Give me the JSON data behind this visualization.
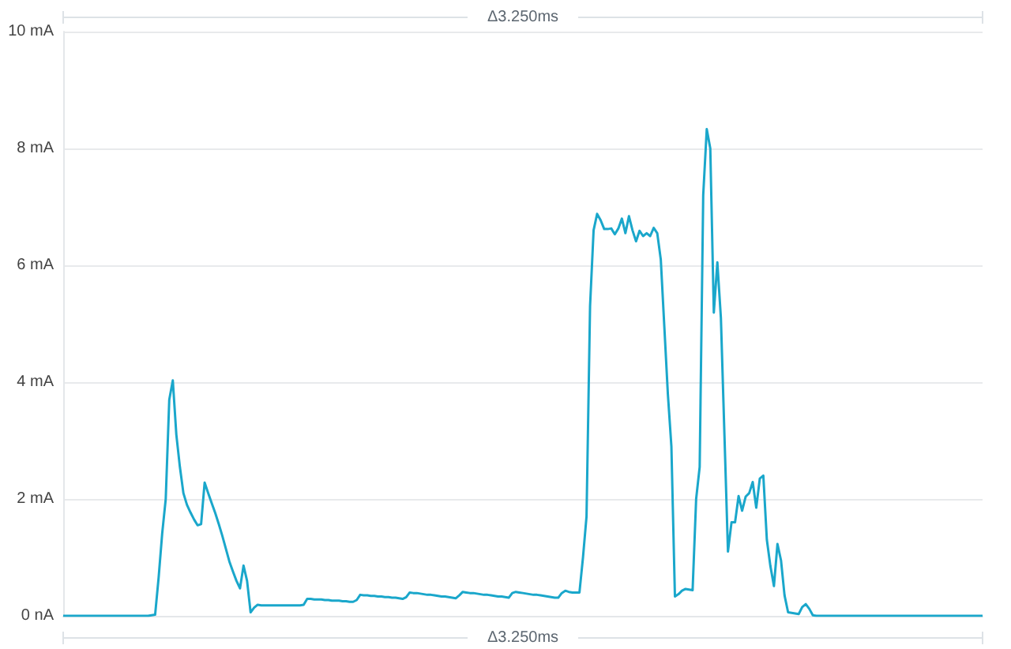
{
  "chart_data": {
    "type": "line",
    "categories": [
      null,
      null,
      null,
      null,
      null,
      null,
      null,
      null,
      null,
      null,
      null,
      null,
      null,
      null,
      null,
      null,
      null,
      null,
      null,
      null,
      null,
      null,
      null,
      null,
      null,
      null,
      null,
      null,
      null,
      null,
      null,
      null,
      null,
      null,
      null,
      null,
      null,
      null,
      null,
      null,
      null,
      null,
      null,
      null,
      null,
      null,
      null,
      null,
      null,
      null,
      null,
      null,
      null,
      null,
      null,
      null,
      null,
      null,
      null,
      null,
      null,
      null,
      null,
      null,
      null,
      null,
      null,
      null,
      null,
      null,
      null,
      null,
      null,
      null,
      null,
      null,
      null,
      null,
      null,
      null,
      null,
      null,
      null,
      null,
      null,
      null,
      null,
      null,
      null,
      null,
      null,
      null,
      null,
      null,
      null,
      null,
      null,
      null,
      null,
      null,
      null,
      null,
      null,
      null,
      null,
      null,
      null,
      null,
      null,
      null,
      null,
      null,
      null,
      null,
      null,
      null,
      null,
      null,
      null,
      null,
      null,
      null,
      null,
      null,
      null,
      null,
      null,
      null,
      null,
      null,
      null,
      null,
      null,
      null,
      null,
      null,
      null,
      null,
      null,
      null,
      null,
      null,
      null,
      null,
      null,
      null,
      null,
      null,
      null,
      null,
      null,
      null,
      null,
      null,
      null,
      null,
      null,
      null,
      null,
      null,
      null,
      null,
      null,
      null,
      null,
      null,
      null,
      null,
      null,
      null,
      null,
      null,
      null,
      null,
      null,
      null,
      null,
      null,
      null,
      null,
      null,
      null,
      null,
      null,
      null,
      null,
      null,
      null,
      null,
      null,
      null,
      null,
      null,
      null,
      null,
      null,
      null,
      null,
      null,
      null,
      null,
      null,
      null,
      null,
      null,
      null,
      null,
      null,
      null,
      null,
      null,
      null,
      null,
      null,
      null,
      null,
      null,
      null,
      null,
      null,
      null,
      null,
      null,
      null,
      null,
      null,
      null,
      null,
      null,
      null,
      null,
      null,
      null,
      null,
      null,
      null,
      null,
      null,
      null,
      null,
      null,
      null,
      null,
      null,
      null,
      null,
      null,
      null,
      null,
      null,
      null,
      null,
      null,
      null,
      null,
      null,
      null,
      null,
      null,
      null,
      null
    ],
    "series": [
      {
        "color": "#1aa7cb",
        "values": [
          0,
          0,
          0,
          0,
          0,
          0,
          0,
          0,
          0,
          0,
          0,
          0,
          0,
          0,
          0,
          0,
          0,
          0,
          0,
          0,
          0,
          0,
          0,
          0,
          0,
          0.01,
          0.02,
          0.66,
          1.41,
          2.0,
          3.7,
          4.03,
          3.1,
          2.55,
          2.1,
          1.9,
          1.77,
          1.65,
          1.55,
          1.57,
          2.28,
          2.1,
          1.93,
          1.76,
          1.57,
          1.37,
          1.15,
          0.93,
          0.76,
          0.6,
          0.47,
          0.86,
          0.6,
          0.06,
          0.14,
          0.19,
          0.18,
          0.18,
          0.18,
          0.18,
          0.18,
          0.18,
          0.18,
          0.18,
          0.18,
          0.18,
          0.18,
          0.18,
          0.19,
          0.29,
          0.29,
          0.28,
          0.28,
          0.28,
          0.27,
          0.27,
          0.26,
          0.26,
          0.26,
          0.25,
          0.25,
          0.24,
          0.24,
          0.27,
          0.36,
          0.35,
          0.35,
          0.34,
          0.34,
          0.33,
          0.33,
          0.32,
          0.32,
          0.31,
          0.31,
          0.3,
          0.29,
          0.32,
          0.4,
          0.39,
          0.39,
          0.38,
          0.37,
          0.36,
          0.36,
          0.35,
          0.34,
          0.33,
          0.33,
          0.32,
          0.31,
          0.3,
          0.35,
          0.41,
          0.4,
          0.39,
          0.39,
          0.38,
          0.37,
          0.36,
          0.36,
          0.35,
          0.34,
          0.33,
          0.33,
          0.32,
          0.31,
          0.39,
          0.41,
          0.4,
          0.39,
          0.38,
          0.37,
          0.36,
          0.36,
          0.35,
          0.34,
          0.33,
          0.32,
          0.31,
          0.31,
          0.39,
          0.43,
          0.41,
          0.4,
          0.4,
          0.4,
          1.0,
          1.7,
          5.3,
          6.6,
          6.88,
          6.77,
          6.62,
          6.62,
          6.63,
          6.53,
          6.63,
          6.8,
          6.55,
          6.84,
          6.6,
          6.41,
          6.59,
          6.5,
          6.55,
          6.5,
          6.64,
          6.55,
          6.1,
          4.95,
          3.8,
          2.9,
          0.33,
          0.37,
          0.43,
          0.46,
          0.45,
          0.44,
          2.0,
          2.55,
          7.2,
          8.33,
          8.0,
          5.19,
          6.05,
          5.1,
          3.1,
          1.1,
          1.6,
          1.6,
          2.05,
          1.8,
          2.04,
          2.1,
          2.29,
          1.85,
          2.35,
          2.4,
          1.3,
          0.85,
          0.51,
          1.23,
          0.95,
          0.35,
          0.06,
          0.05,
          0.04,
          0.03,
          0.15,
          0.2,
          0.12,
          0.01,
          0,
          0,
          0,
          0,
          0,
          0,
          0,
          0,
          0,
          0,
          0,
          0,
          0,
          0,
          0,
          0,
          0,
          0,
          0,
          0,
          0,
          0,
          0,
          0,
          0,
          0,
          0,
          0,
          0,
          0,
          0,
          0,
          0,
          0,
          0,
          0,
          0,
          0,
          0,
          0,
          0,
          0,
          0,
          0,
          0,
          0,
          0,
          0
        ]
      }
    ],
    "ylim": [
      0,
      10
    ],
    "yticks": [
      {
        "value": 0,
        "label": "0 nA"
      },
      {
        "value": 2,
        "label": "2 mA"
      },
      {
        "value": 4,
        "label": "4 mA"
      },
      {
        "value": 6,
        "label": "6 mA"
      },
      {
        "value": 8,
        "label": "8 mA"
      },
      {
        "value": 10,
        "label": "10 mA"
      }
    ],
    "grid": "y",
    "marker": "none",
    "line_style": "solid",
    "annotations": [
      "Δ3.250ms",
      "Δ3.250ms"
    ]
  }
}
